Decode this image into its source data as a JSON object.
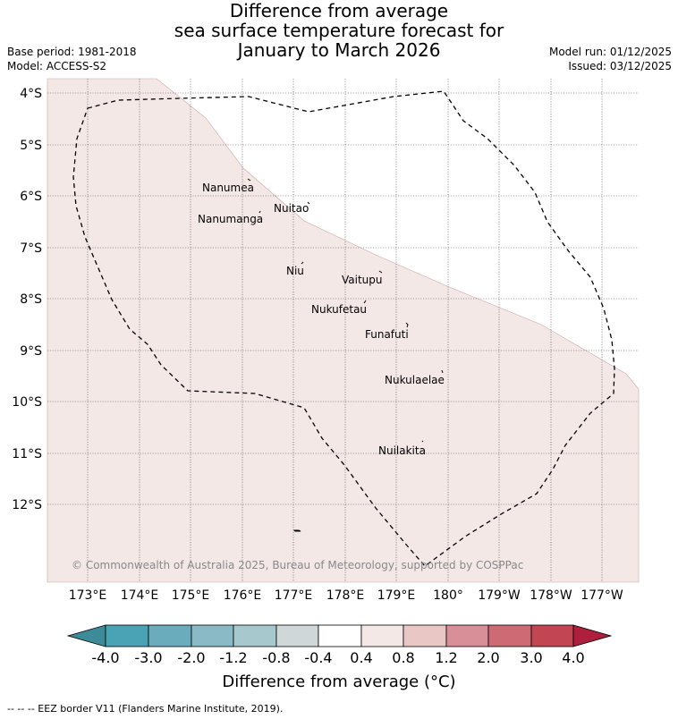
{
  "title": {
    "line1": "Difference from average",
    "line2": "sea surface temperature forecast for",
    "line3": "January to March 2026"
  },
  "meta": {
    "base_period": "Base period: 1981-2018",
    "model": "Model: ACCESS-S2",
    "model_run": "Model run: 01/12/2025",
    "issued": "Issued: 03/12/2025"
  },
  "map": {
    "lat_labels": [
      "4°S",
      "5°S",
      "6°S",
      "7°S",
      "8°S",
      "9°S",
      "10°S",
      "11°S",
      "12°S"
    ],
    "lon_labels": [
      "173°E",
      "174°E",
      "175°E",
      "176°E",
      "177°E",
      "178°E",
      "179°E",
      "180°",
      "179°W",
      "178°W",
      "177°W"
    ],
    "places": [
      "Nanumea",
      "Nuitao",
      "Nanumanga",
      "Niu",
      "Vaitupu",
      "Nukufetau",
      "Funafuti",
      "Nukulaelae",
      "Nuilakita"
    ],
    "copyright": "© Commonwealth of Australia 2025, Bureau of Meteorology, supported by COSPPac",
    "anomaly_fill_color": "#f4e8e6",
    "eez_line_color": "#000000"
  },
  "colorbar": {
    "ticks": [
      "-4.0",
      "-3.0",
      "-2.0",
      "-1.2",
      "-0.8",
      "-0.4",
      "0.4",
      "0.8",
      "1.2",
      "2.0",
      "3.0",
      "4.0"
    ],
    "colors": [
      "#4aa2b5",
      "#6aacbb",
      "#89bac5",
      "#a7c8cc",
      "#d0d7d9",
      "#ffffff",
      "#f4e8e6",
      "#e8c7c4",
      "#d88f97",
      "#cd6a74",
      "#c24553"
    ],
    "low_extend_color": "#3d8b99",
    "high_extend_color": "#ad1f3c",
    "label": "Difference from average (°C)"
  },
  "footer": "--  --  -- EEZ border V11 (Flanders Marine Institute, 2019)."
}
